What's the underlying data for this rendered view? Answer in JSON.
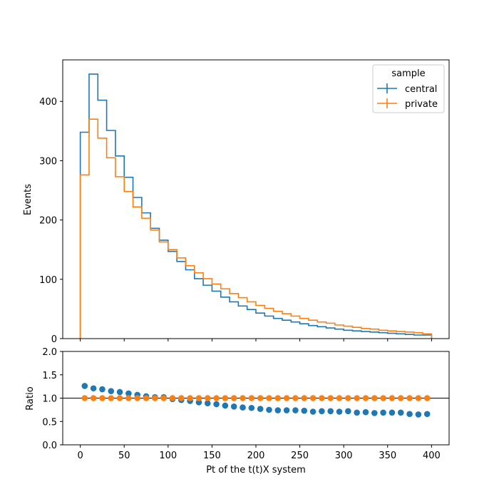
{
  "chart_data": [
    {
      "type": "histogram-step",
      "xlabel": "",
      "ylabel": "Events",
      "xlim": [
        -20,
        420
      ],
      "ylim": [
        0,
        470
      ],
      "bin_width": 10,
      "bin_edges_start": 0,
      "x_ticks": [
        0,
        50,
        100,
        150,
        200,
        250,
        300,
        350,
        400
      ],
      "y_ticks": [
        0,
        100,
        200,
        300,
        400
      ],
      "y_tick_labels": [
        "0",
        "100",
        "200",
        "300",
        "400"
      ],
      "legend": {
        "title": "sample",
        "placement": "top-right",
        "entries": [
          {
            "label": "central",
            "color": "#1f77b4"
          },
          {
            "label": "private",
            "color": "#ff7f0e"
          }
        ]
      },
      "series": [
        {
          "name": "central",
          "color": "#1f77b4",
          "values": [
            348,
            446,
            402,
            351,
            308,
            272,
            238,
            212,
            186,
            166,
            147,
            130,
            116,
            101,
            90,
            80,
            70,
            62,
            55,
            49,
            43,
            38,
            34,
            31,
            28,
            25,
            22,
            20,
            18,
            16,
            14,
            13,
            12,
            11,
            10,
            9,
            8,
            7,
            6,
            6
          ]
        },
        {
          "name": "private",
          "color": "#ff7f0e",
          "values": [
            276,
            370,
            338,
            305,
            273,
            248,
            222,
            203,
            183,
            163,
            150,
            136,
            123,
            111,
            101,
            92,
            84,
            76,
            69,
            62,
            56,
            51,
            46,
            42,
            38,
            34,
            31,
            28,
            26,
            23,
            21,
            19,
            17,
            16,
            14,
            13,
            12,
            11,
            10,
            8
          ]
        }
      ]
    },
    {
      "type": "scatter",
      "xlabel": "Pt of the t(t)X system",
      "ylabel": "Ratio",
      "xlim": [
        -20,
        420
      ],
      "ylim": [
        0,
        2
      ],
      "x_ticks": [
        0,
        50,
        100,
        150,
        200,
        250,
        300,
        350,
        400
      ],
      "x_tick_labels": [
        "0",
        "50",
        "100",
        "150",
        "200",
        "250",
        "300",
        "350",
        "400"
      ],
      "y_ticks": [
        0,
        0.5,
        1.0,
        1.5,
        2.0
      ],
      "y_tick_labels": [
        "0.0",
        "0.5",
        "1.0",
        "1.5",
        "2.0"
      ],
      "reference_line": 1.0,
      "x": [
        5,
        15,
        25,
        35,
        45,
        55,
        65,
        75,
        85,
        95,
        105,
        115,
        125,
        135,
        145,
        155,
        165,
        175,
        185,
        195,
        205,
        215,
        225,
        235,
        245,
        255,
        265,
        275,
        285,
        295,
        305,
        315,
        325,
        335,
        345,
        355,
        365,
        375,
        385,
        395
      ],
      "series": [
        {
          "name": "central",
          "color": "#1f77b4",
          "values": [
            1.26,
            1.21,
            1.19,
            1.15,
            1.13,
            1.1,
            1.07,
            1.04,
            1.02,
            1.02,
            0.98,
            0.96,
            0.94,
            0.91,
            0.89,
            0.87,
            0.84,
            0.82,
            0.8,
            0.79,
            0.77,
            0.75,
            0.74,
            0.74,
            0.74,
            0.73,
            0.71,
            0.72,
            0.72,
            0.71,
            0.72,
            0.69,
            0.7,
            0.68,
            0.69,
            0.69,
            0.69,
            0.66,
            0.65,
            0.66
          ]
        },
        {
          "name": "private",
          "color": "#ff7f0e",
          "values": [
            1.0,
            1.0,
            1.0,
            1.0,
            1.0,
            1.0,
            1.0,
            1.0,
            1.0,
            1.0,
            1.0,
            1.0,
            1.0,
            1.0,
            1.0,
            1.0,
            1.0,
            1.0,
            1.0,
            1.0,
            1.0,
            1.0,
            1.0,
            1.0,
            1.0,
            1.0,
            1.0,
            1.0,
            1.0,
            1.0,
            1.0,
            1.0,
            1.0,
            1.0,
            1.0,
            1.0,
            1.0,
            1.0,
            1.0,
            1.0
          ]
        }
      ]
    }
  ]
}
